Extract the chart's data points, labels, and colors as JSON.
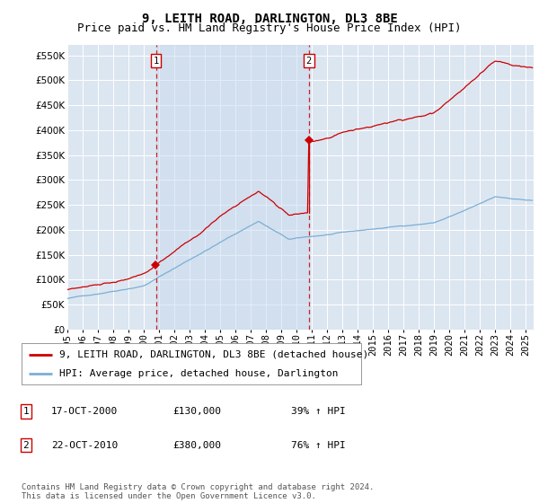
{
  "title": "9, LEITH ROAD, DARLINGTON, DL3 8BE",
  "subtitle": "Price paid vs. HM Land Registry's House Price Index (HPI)",
  "ylim": [
    0,
    570000
  ],
  "yticks": [
    0,
    50000,
    100000,
    150000,
    200000,
    250000,
    300000,
    350000,
    400000,
    450000,
    500000,
    550000
  ],
  "xlim_start": 1995.0,
  "xlim_end": 2025.5,
  "background_color": "#ffffff",
  "plot_bg_color": "#dce6f1",
  "grid_color": "#ffffff",
  "red_line_color": "#cc0000",
  "blue_line_color": "#7bafd4",
  "shade_color": "#c5d8ed",
  "sale1_x": 2000.8,
  "sale1_y": 130000,
  "sale1_label": "1",
  "sale2_x": 2010.8,
  "sale2_y": 380000,
  "sale2_label": "2",
  "vline_color": "#cc0000",
  "marker_color": "#cc0000",
  "legend_label_red": "9, LEITH ROAD, DARLINGTON, DL3 8BE (detached house)",
  "legend_label_blue": "HPI: Average price, detached house, Darlington",
  "table_rows": [
    {
      "num": "1",
      "date": "17-OCT-2000",
      "price": "£130,000",
      "pct": "39% ↑ HPI"
    },
    {
      "num": "2",
      "date": "22-OCT-2010",
      "price": "£380,000",
      "pct": "76% ↑ HPI"
    }
  ],
  "footnote": "Contains HM Land Registry data © Crown copyright and database right 2024.\nThis data is licensed under the Open Government Licence v3.0.",
  "title_fontsize": 10,
  "subtitle_fontsize": 9,
  "tick_fontsize": 7.5,
  "legend_fontsize": 8,
  "table_fontsize": 8,
  "footnote_fontsize": 6.5
}
